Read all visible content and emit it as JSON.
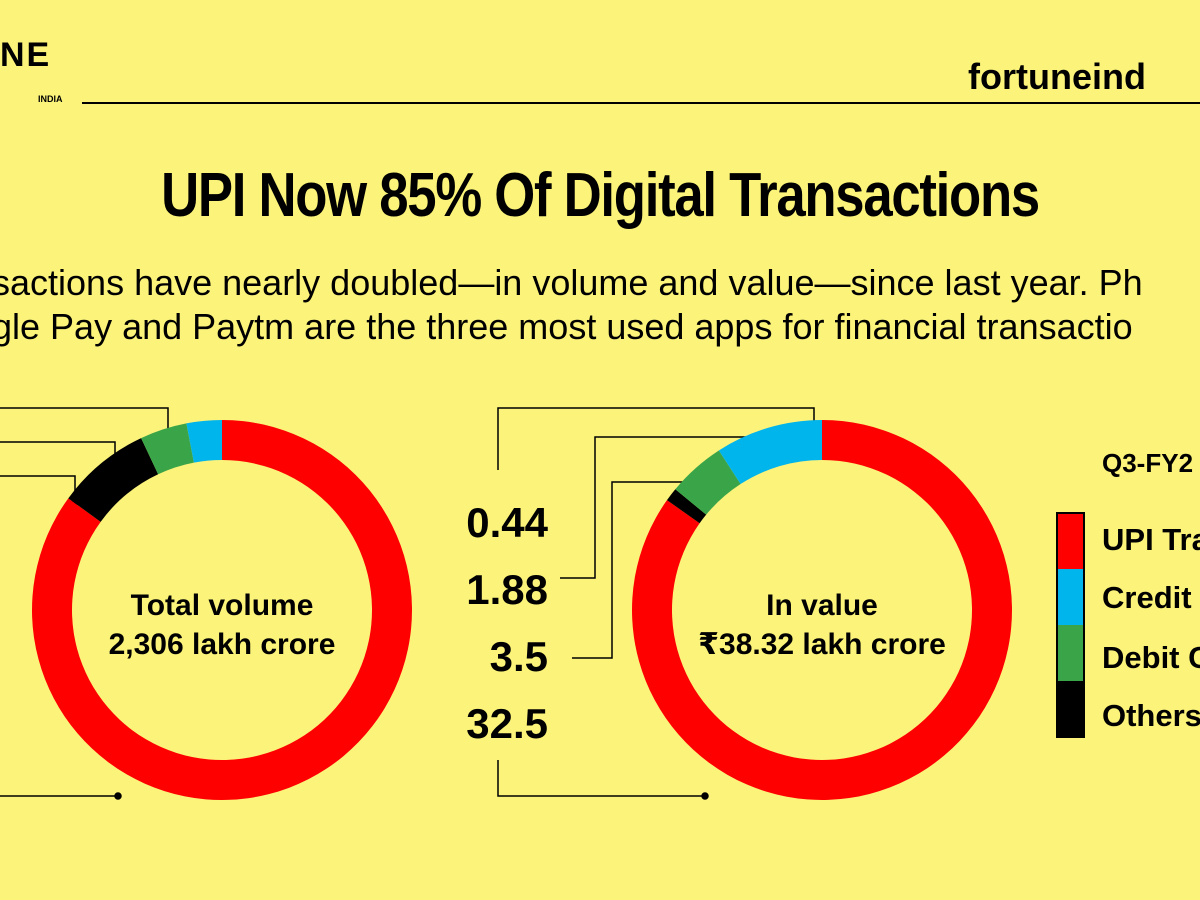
{
  "header": {
    "brand": "NE",
    "brand_sub": "INDIA",
    "site": "fortuneind"
  },
  "title": "UPI Now 85% Of Digital Transactions",
  "subtitle_lines": [
    "sactions have nearly doubled—in volume and value—since last year. Ph",
    "gle Pay and Paytm are the three most used apps for financial transactio"
  ],
  "legend": {
    "period": "Q3-FY2",
    "items": [
      "UPI Tra",
      "Credit C",
      "Debit C",
      "Others"
    ]
  },
  "colors": {
    "background": "#fbf37a",
    "upi": "#ff0000",
    "credit": "#00b4ec",
    "debit": "#3aa548",
    "others": "#000000"
  },
  "chart_data": [
    {
      "type": "pie",
      "center_label": [
        "Total volume",
        "2,306 lakh crore"
      ],
      "segments": [
        {
          "name": "UPI",
          "value": 85.0,
          "color": "#ff0000"
        },
        {
          "name": "Others",
          "value": 8.0,
          "color": "#000000"
        },
        {
          "name": "Debit",
          "value": 4.0,
          "color": "#3aa548"
        },
        {
          "name": "Credit",
          "value": 3.0,
          "color": "#00b4ec"
        }
      ]
    },
    {
      "type": "pie",
      "center_label": [
        "In value",
        "₹38.32 lakh crore"
      ],
      "value_labels": [
        "0.44",
        "1.88",
        "3.5",
        "32.5"
      ],
      "segments": [
        {
          "name": "UPI",
          "value": 32.5,
          "color": "#ff0000"
        },
        {
          "name": "Others",
          "value": 0.44,
          "color": "#000000"
        },
        {
          "name": "Debit",
          "value": 1.88,
          "color": "#3aa548"
        },
        {
          "name": "Credit",
          "value": 3.5,
          "color": "#00b4ec"
        }
      ]
    }
  ]
}
